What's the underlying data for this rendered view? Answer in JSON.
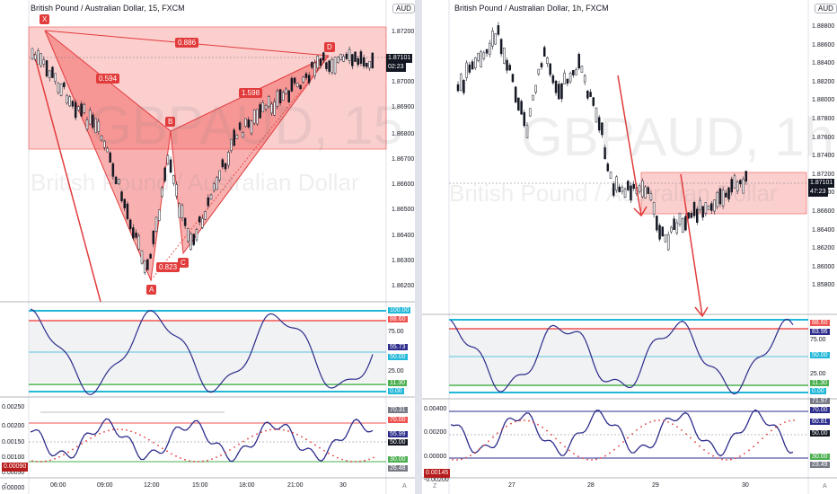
{
  "left": {
    "title": "British Pound / Australian Dollar, 15, FXCM",
    "currency_button": "AUD",
    "watermark_big": "GBPAUD, 15",
    "watermark_small": "British Pound / Australian Dollar",
    "price_axis": [
      "1.87200",
      "1.87000",
      "1.86900",
      "1.86800",
      "1.86700",
      "1.86600",
      "1.86500",
      "1.86400",
      "1.86300",
      "1.86200"
    ],
    "price_tag": "1.87101",
    "countdown": "02:23",
    "pattern_points": [
      "X",
      "A",
      "B",
      "C",
      "D"
    ],
    "ratios": [
      "0.886",
      "0.594",
      "1.598",
      "0.823"
    ],
    "rsi_axis": [
      "100.00",
      "88.60",
      "75.00",
      "55.73",
      "50.00",
      "25.00",
      "11.30",
      "0.00"
    ],
    "osc_axis": [
      "0.00250",
      "0.00200",
      "0.00150",
      "0.00100",
      "0.00050",
      "0.00000"
    ],
    "osc_tags": [
      "70.31",
      "70.00",
      "55.99",
      "50.00",
      "30.00",
      "26.48"
    ],
    "osc_left_tag": "0.00090",
    "time_axis": [
      "06:00",
      "09:00",
      "12:00",
      "15:00",
      "18:00",
      "21:00",
      "30"
    ]
  },
  "right": {
    "title": "British Pound / Australian Dollar, 1h, FXCM",
    "currency_button": "AUD",
    "watermark_big": "GBPAUD, 1h",
    "watermark_small": "British Pound / Australian Dollar",
    "price_axis": [
      "1.88800",
      "1.88600",
      "1.88400",
      "1.88200",
      "1.88000",
      "1.87800",
      "1.87600",
      "1.87400",
      "1.87200",
      "1.86800",
      "1.86600",
      "1.86400",
      "1.86200",
      "1.86000",
      "1.85800"
    ],
    "price_tag": "1.87101",
    "countdown": "47:23",
    "rsi_axis": [
      "88.60",
      "83.96",
      "75.00",
      "50.00",
      "25.00",
      "11.30",
      "0.00"
    ],
    "osc_axis": [
      "0.00400",
      "0.00200",
      "0.00000",
      "-0.00200"
    ],
    "osc_tags": [
      "71.97",
      "70.00",
      "60.81",
      "50.00",
      "30.00",
      "23.49"
    ],
    "osc_left_tag": "0.00145",
    "time_axis": [
      "27",
      "28",
      "29",
      "30"
    ]
  },
  "corner_labels": [
    "Z",
    "A"
  ],
  "colors": {
    "bear": "#e23b3b",
    "zone": "rgba(239,83,80,0.28)",
    "rsi_line": "#2c2c8c",
    "cyan": "#22b8d8",
    "overbought": "#ef5350",
    "oversold": "#4caf50"
  }
}
